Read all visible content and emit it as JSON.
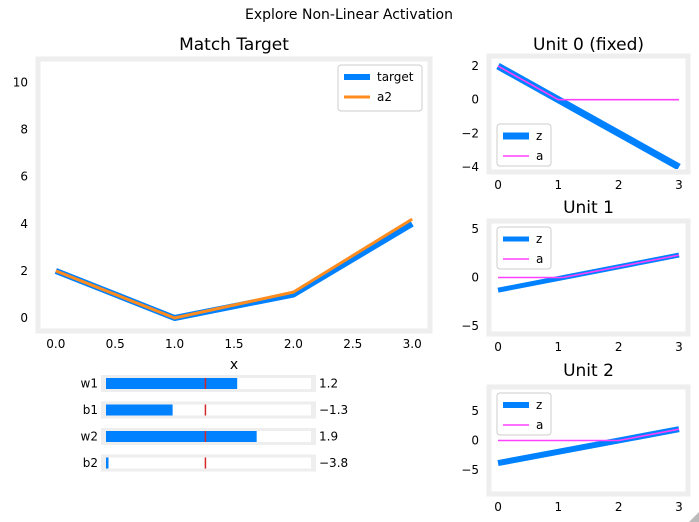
{
  "figure": {
    "suptitle": "Explore Non-Linear Activation"
  },
  "colors": {
    "target": "#0081ff",
    "a2": "#ff8c1e",
    "z": "#0081ff",
    "a": "#ff40ff",
    "slider_fill": "#0081ff",
    "slider_track": "#eeeeee",
    "slider_init": "#d62728",
    "frame": "#eeeeee"
  },
  "chart_data": [
    {
      "id": "main",
      "type": "line",
      "title": "Match Target",
      "xlabel": "x",
      "ylabel": "",
      "xlim": [
        -0.15,
        3.15
      ],
      "ylim": [
        -0.55,
        11.0
      ],
      "xticks": [
        0.0,
        0.5,
        1.0,
        1.5,
        2.0,
        2.5,
        3.0
      ],
      "xtick_labels": [
        "0.0",
        "0.5",
        "1.0",
        "1.5",
        "2.0",
        "2.5",
        "3.0"
      ],
      "yticks": [
        0,
        2,
        4,
        6,
        8,
        10
      ],
      "ytick_labels": [
        "0",
        "2",
        "4",
        "6",
        "8",
        "10"
      ],
      "legend": "top-right",
      "series": [
        {
          "name": "target",
          "color": "#0081ff",
          "x": [
            0,
            1,
            2,
            3
          ],
          "y": [
            2,
            0,
            1,
            4
          ]
        },
        {
          "name": "a2",
          "color": "#ff8c1e",
          "x": [
            0,
            1,
            2,
            3
          ],
          "y": [
            2.0,
            0.0,
            1.1,
            4.2
          ]
        }
      ]
    },
    {
      "id": "unit0",
      "type": "line",
      "title": "Unit 0 (fixed)",
      "xlim": [
        -0.15,
        3.15
      ],
      "ylim": [
        -4.3,
        2.6
      ],
      "xticks": [
        0,
        1,
        2,
        3
      ],
      "xtick_labels": [
        "0",
        "1",
        "2",
        "3"
      ],
      "yticks": [
        2,
        0,
        -2,
        -4
      ],
      "ytick_labels": [
        "2",
        "0",
        "−2",
        "−4"
      ],
      "legend": "lower-left",
      "series": [
        {
          "name": "z",
          "color": "#0081ff",
          "x": [
            0,
            3
          ],
          "y": [
            2,
            -4
          ]
        },
        {
          "name": "a",
          "color": "#ff40ff",
          "x": [
            0,
            1,
            3
          ],
          "y": [
            2,
            0,
            0
          ]
        }
      ]
    },
    {
      "id": "unit1",
      "type": "line",
      "title": "Unit 1",
      "xlim": [
        -0.15,
        3.15
      ],
      "ylim": [
        -5.8,
        5.8
      ],
      "xticks": [
        0,
        1,
        2,
        3
      ],
      "xtick_labels": [
        "0",
        "1",
        "2",
        "3"
      ],
      "yticks": [
        5,
        0,
        -5
      ],
      "ytick_labels": [
        "5",
        "0",
        "−5"
      ],
      "legend": "upper-left",
      "series": [
        {
          "name": "z",
          "color": "#0081ff",
          "x": [
            0,
            3
          ],
          "y": [
            -1.3,
            2.3
          ]
        },
        {
          "name": "a",
          "color": "#ff40ff",
          "x": [
            0,
            1.08,
            3
          ],
          "y": [
            0,
            0,
            2.3
          ]
        }
      ]
    },
    {
      "id": "unit2",
      "type": "line",
      "title": "Unit 2",
      "xlim": [
        -0.15,
        3.15
      ],
      "ylim": [
        -9.0,
        9.0
      ],
      "xticks": [
        0,
        1,
        2,
        3
      ],
      "xtick_labels": [
        "0",
        "1",
        "2",
        "3"
      ],
      "yticks": [
        5,
        0,
        -5
      ],
      "ytick_labels": [
        "5",
        "0",
        "−5"
      ],
      "legend": "upper-left",
      "series": [
        {
          "name": "z",
          "color": "#0081ff",
          "x": [
            0,
            3
          ],
          "y": [
            -3.8,
            1.9
          ]
        },
        {
          "name": "a",
          "color": "#ff40ff",
          "x": [
            0,
            2.0,
            3
          ],
          "y": [
            0,
            0,
            1.9
          ]
        }
      ]
    }
  ],
  "sliders": [
    {
      "label": "w1",
      "value": 1.2,
      "value_label": "1.2",
      "fill_fraction": 0.64,
      "init_fraction": 0.485
    },
    {
      "label": "b1",
      "value": -1.3,
      "value_label": "−1.3",
      "fill_fraction": 0.325,
      "init_fraction": 0.485
    },
    {
      "label": "w2",
      "value": 1.9,
      "value_label": "1.9",
      "fill_fraction": 0.735,
      "init_fraction": 0.485
    },
    {
      "label": "b2",
      "value": -3.8,
      "value_label": "−3.8",
      "fill_fraction": 0.012,
      "init_fraction": 0.485
    }
  ]
}
